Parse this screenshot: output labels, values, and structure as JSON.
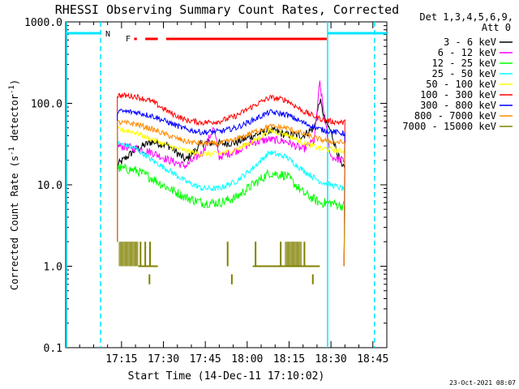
{
  "chart_data": {
    "type": "line",
    "title": "RHESSI Observing Summary Count Rates, Corrected",
    "xlabel": "Start Time (14-Dec-11 17:10:02)",
    "ylabel_main": "Corrected Count Rate (s",
    "ylabel_sup1": "-1",
    "ylabel_mid": " detector",
    "ylabel_sup2": "-1",
    "ylabel_end": ")",
    "yscale": "log",
    "ylim": [
      0.1,
      1000
    ],
    "xlim_minutes": [
      1015,
      1130
    ],
    "x_tick_labels": [
      "17:15",
      "17:30",
      "17:45",
      "18:00",
      "18:15",
      "18:30",
      "18:45"
    ],
    "x_tick_minutes": [
      1035,
      1050,
      1065,
      1080,
      1095,
      1110,
      1125
    ],
    "y_tick_labels": [
      "0.1",
      "1.0",
      "10.0",
      "100.0",
      "1000.0"
    ],
    "y_tick_values": [
      0.1,
      1,
      10,
      100,
      1000
    ],
    "detectors": "Det 1,3,4,5,6,9,",
    "attenuator": "Att 0",
    "timestamp": "23-Oct-2021 08:07",
    "flags": {
      "night_label": "N",
      "flare_label": "F",
      "night_color": "#00e5ff",
      "flare_color": "#ff0000",
      "night_bars_minutes": [
        [
          1015,
          1027.5
        ],
        [
          1108.8,
          1130
        ]
      ],
      "night_bounds_minutes": [
        1015,
        1027.5,
        1108.8,
        1125.6
      ],
      "flare_segments_minutes": [
        [
          1039.5,
          1040.5
        ],
        [
          1043.5,
          1048
        ],
        [
          1051,
          1108.5
        ]
      ]
    },
    "data_window_minutes": [
      1033.5,
      1115
    ],
    "series": [
      {
        "name": "3 - 6 keV",
        "color": "#000000"
      },
      {
        "name": "6 - 12 keV",
        "color": "#ff00ff"
      },
      {
        "name": "12 - 25 keV",
        "color": "#00ff00"
      },
      {
        "name": "25 - 50 keV",
        "color": "#00ffff"
      },
      {
        "name": "50 - 100 keV",
        "color": "#ffff00"
      },
      {
        "name": "100 - 300 keV",
        "color": "#ff0000"
      },
      {
        "name": "300 - 800 keV",
        "color": "#0000ff"
      },
      {
        "name": "800 - 7000 keV",
        "color": "#ff8c00"
      },
      {
        "name": "7000 - 15000 keV",
        "color": "#808000"
      }
    ],
    "series_values": {
      "3 - 6 keV": {
        "x": [
          1034,
          1040,
          1046,
          1052,
          1058,
          1064,
          1070,
          1076,
          1082,
          1088,
          1094,
          1100,
          1104,
          1106,
          1108,
          1110,
          1114
        ],
        "y": [
          18,
          27,
          34,
          30,
          20,
          33,
          32,
          33,
          40,
          47,
          41,
          40,
          50,
          110,
          60,
          45,
          16
        ]
      },
      "6 - 12 keV": {
        "x": [
          1034,
          1040,
          1046,
          1052,
          1058,
          1064,
          1068,
          1070,
          1076,
          1082,
          1088,
          1094,
          1100,
          1104,
          1106,
          1108,
          1110,
          1114
        ],
        "y": [
          30,
          28,
          25,
          20,
          17,
          25,
          50,
          22,
          26,
          33,
          36,
          34,
          27,
          35,
          180,
          55,
          22,
          20
        ]
      },
      "12 - 25 keV": {
        "x": [
          1034,
          1040,
          1046,
          1052,
          1058,
          1064,
          1070,
          1076,
          1082,
          1088,
          1094,
          1100,
          1106,
          1110,
          1114
        ],
        "y": [
          16,
          15,
          12,
          9,
          7,
          6,
          6,
          7,
          10,
          14,
          13,
          8,
          6,
          6,
          5.5
        ]
      },
      "25 - 50 keV": {
        "x": [
          1034,
          1040,
          1046,
          1052,
          1058,
          1064,
          1070,
          1076,
          1082,
          1088,
          1094,
          1100,
          1106,
          1110,
          1114
        ],
        "y": [
          32,
          28,
          20,
          15,
          11,
          9,
          9,
          11,
          16,
          25,
          22,
          15,
          11,
          10,
          9
        ]
      },
      "50 - 100 keV": {
        "x": [
          1034,
          1040,
          1046,
          1052,
          1058,
          1064,
          1070,
          1076,
          1082,
          1088,
          1094,
          1100,
          1106,
          1110,
          1114
        ],
        "y": [
          48,
          44,
          36,
          30,
          26,
          24,
          24,
          27,
          34,
          46,
          42,
          33,
          28,
          27,
          26
        ]
      },
      "100 - 300 keV": {
        "x": [
          1034,
          1040,
          1046,
          1052,
          1058,
          1064,
          1070,
          1076,
          1082,
          1088,
          1094,
          1100,
          1106,
          1110,
          1114
        ],
        "y": [
          125,
          122,
          105,
          78,
          62,
          58,
          60,
          70,
          92,
          118,
          110,
          80,
          65,
          60,
          58
        ]
      },
      "300 - 800 keV": {
        "x": [
          1034,
          1040,
          1046,
          1052,
          1058,
          1064,
          1070,
          1076,
          1082,
          1088,
          1094,
          1100,
          1106,
          1110,
          1114
        ],
        "y": [
          80,
          78,
          70,
          58,
          48,
          44,
          45,
          50,
          62,
          78,
          73,
          58,
          48,
          45,
          43
        ]
      },
      "800 - 7000 keV": {
        "x": [
          1034,
          1040,
          1046,
          1052,
          1058,
          1064,
          1070,
          1076,
          1082,
          1088,
          1094,
          1100,
          1106,
          1110,
          1114
        ],
        "y": [
          58,
          56,
          48,
          40,
          34,
          32,
          32,
          36,
          44,
          52,
          50,
          42,
          36,
          34,
          33
        ]
      },
      "7000 - 15000 keV": {
        "blocks_minutes": [
          [
            1034,
            1041
          ],
          [
            1093.5,
            1099.5
          ]
        ],
        "spikes_minutes": [
          1041.8,
          1043.5,
          1045.2,
          1073,
          1083,
          1092,
          1100.5
        ],
        "low": 1,
        "high": 2,
        "drops_minutes": [
          1045,
          1074.5,
          1103.5
        ],
        "drop_low": 0.6
      }
    }
  }
}
